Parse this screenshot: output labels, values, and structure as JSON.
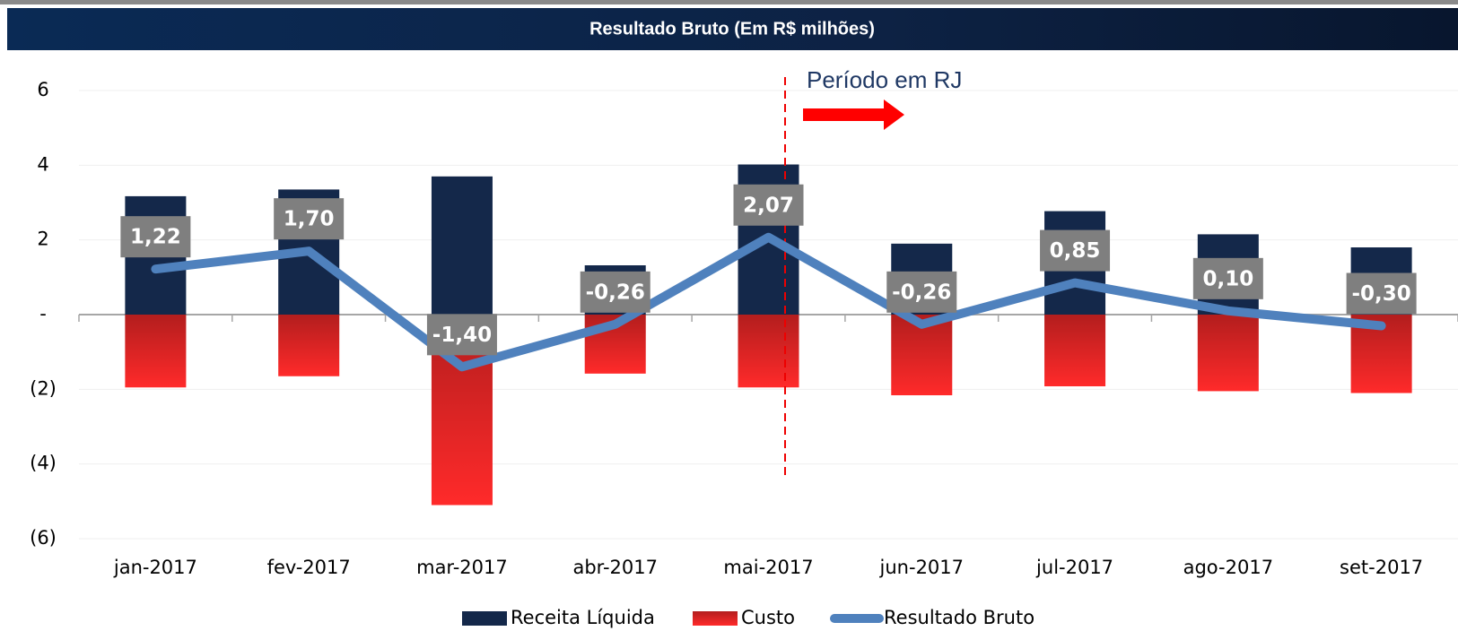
{
  "chart_data": {
    "type": "bar",
    "title": "Resultado Bruto (Em R$ milhões)",
    "categories": [
      "jan-2017",
      "fev-2017",
      "mar-2017",
      "abr-2017",
      "mai-2017",
      "jun-2017",
      "jul-2017",
      "ago-2017",
      "set-2017"
    ],
    "series": [
      {
        "name": "Receita Líquida",
        "color": "#14284a",
        "values": [
          3.17,
          3.35,
          3.7,
          1.32,
          4.02,
          1.9,
          2.77,
          2.15,
          1.8
        ]
      },
      {
        "name": "Custo",
        "color": "#ff2a2a",
        "values": [
          -1.95,
          -1.65,
          -5.1,
          -1.58,
          -1.95,
          -2.16,
          -1.92,
          -2.05,
          -2.1
        ]
      },
      {
        "name": "Resultado Bruto",
        "color": "#4f81bd",
        "type": "line",
        "values": [
          1.22,
          1.7,
          -1.4,
          -0.26,
          2.07,
          -0.26,
          0.85,
          0.1,
          -0.3
        ],
        "value_labels": [
          "1,22",
          "1,70",
          "-1,40",
          "-0,26",
          "2,07",
          "-0,26",
          "0,85",
          "0,10",
          "-0,30"
        ]
      }
    ],
    "ylim": [
      -6,
      6
    ],
    "yticks": [
      6,
      4,
      2,
      {
        "value": 0,
        "label": "-"
      },
      {
        "value": -2,
        "label": "(2)"
      },
      {
        "value": -4,
        "label": "(4)"
      },
      {
        "value": -6,
        "label": "(6)"
      }
    ],
    "grid": true,
    "annotation": "Período em RJ",
    "legend": "bottom"
  }
}
